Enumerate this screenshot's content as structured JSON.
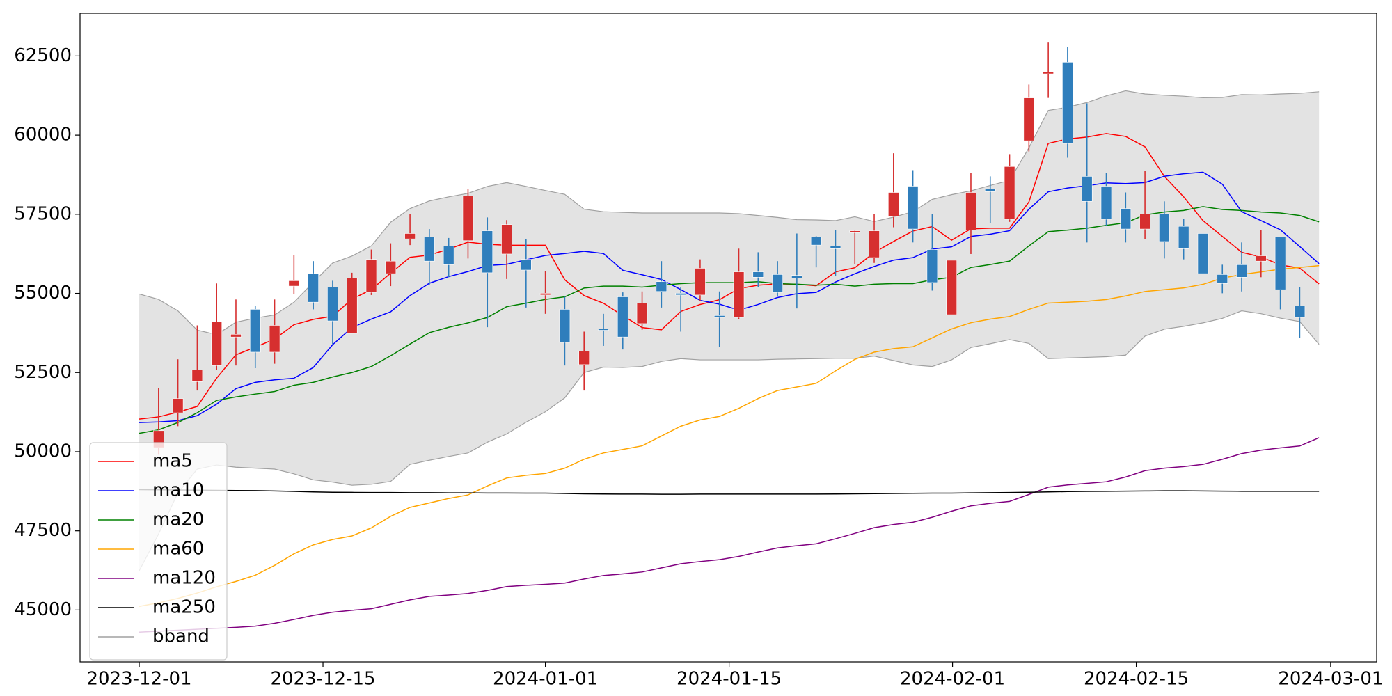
{
  "chart_data": {
    "type": "candlestick",
    "x": [
      0,
      1,
      2,
      3,
      4,
      5,
      6,
      7,
      8,
      9,
      10,
      11,
      12,
      13,
      14,
      15,
      16,
      17,
      18,
      19,
      20,
      21,
      22,
      23,
      24,
      25,
      26,
      27,
      28,
      29,
      30,
      31,
      32,
      33,
      34,
      35,
      36,
      37,
      38,
      39,
      40,
      41,
      42,
      43,
      44,
      45,
      46,
      47,
      48,
      49,
      50,
      51,
      52,
      53,
      54,
      55,
      56,
      57,
      58,
      59,
      60,
      61
    ],
    "xlim": [
      -3.06,
      63.98
    ],
    "xticks": [
      {
        "value": 0,
        "label": "2023-12-01"
      },
      {
        "value": 9.5,
        "label": "2023-12-15"
      },
      {
        "value": 21,
        "label": "2024-01-01"
      },
      {
        "value": 30.5,
        "label": "2024-01-15"
      },
      {
        "value": 42.05,
        "label": "2024-02-01"
      },
      {
        "value": 51.55,
        "label": "2024-02-15"
      },
      {
        "value": 61.6,
        "label": "2024-03-01"
      }
    ],
    "ylim": [
      43360,
      63850
    ],
    "yticks": [
      45000,
      47500,
      50000,
      52500,
      55000,
      57500,
      60000,
      62500
    ],
    "up_color": "#d62f2f",
    "down_color": "#2f7ebc",
    "open": [
      null,
      50129,
      51228,
      52214,
      52722,
      53623,
      54497,
      53144,
      55230,
      55624,
      55201,
      53736,
      55032,
      55624,
      56723,
      56779,
      56498,
      56667,
      56977,
      56244,
      56075,
      54948,
      54497,
      52750,
      53880,
      54891,
      54046,
      55371,
      55004,
      54948,
      54300,
      54243,
      55680,
      55596,
      55568,
      56779,
      56498,
      56920,
      56131,
      57428,
      58386,
      56385,
      54328,
      57005,
      58301,
      57343,
      59823,
      61936,
      62303,
      58696,
      58386,
      57681,
      57033,
      57512,
      57118,
      56892,
      55596,
      55906,
      56019,
      56779,
      54610,
      null
    ],
    "high": [
      null,
      52017,
      52919,
      53990,
      55314,
      54807,
      54610,
      54807,
      56216,
      56019,
      55399,
      55652,
      56385,
      56582,
      57512,
      57033,
      56751,
      58301,
      57399,
      57315,
      56723,
      55709,
      54891,
      53792,
      54356,
      55032,
      55061,
      56019,
      55201,
      56075,
      55061,
      56413,
      56300,
      56019,
      56892,
      56808,
      57005,
      57005,
      57512,
      59428,
      58893,
      57512,
      56047,
      58808,
      58696,
      59400,
      61598,
      62923,
      62782,
      61006,
      58808,
      58188,
      58865,
      57907,
      57343,
      56892,
      55906,
      56610,
      57005,
      56779,
      55201,
      null
    ],
    "low": [
      null,
      49904,
      50805,
      51932,
      52581,
      52722,
      52637,
      52778,
      54976,
      54497,
      53398,
      53736,
      54948,
      55230,
      56526,
      55258,
      55511,
      56103,
      53933,
      55455,
      54553,
      54356,
      52722,
      51932,
      53342,
      53229,
      53849,
      54553,
      53792,
      54751,
      53313,
      54187,
      55201,
      54920,
      54525,
      55821,
      55539,
      55934,
      55962,
      57089,
      56610,
      55089,
      54328,
      56244,
      57230,
      57259,
      59485,
      61176,
      59288,
      56610,
      57146,
      56610,
      56723,
      56103,
      56075,
      55624,
      55004,
      55061,
      55511,
      54497,
      53595,
      null
    ],
    "close": [
      null,
      50664,
      51679,
      52581,
      54102,
      53708,
      53144,
      53990,
      55399,
      54722,
      54131,
      55483,
      56075,
      56019,
      56892,
      56019,
      55906,
      58076,
      55652,
      57174,
      55737,
      55004,
      53454,
      53173,
      53850,
      53623,
      54694,
      55061,
      54948,
      55793,
      54243,
      55680,
      55511,
      55032,
      55483,
      56526,
      56413,
      56977,
      56977,
      58188,
      57033,
      55342,
      56047,
      58188,
      58217,
      59006,
      61176,
      61993,
      59738,
      57907,
      57343,
      57033,
      57512,
      56639,
      56413,
      55624,
      55314,
      55511,
      56187,
      55117,
      54243,
      null
    ],
    "series": [
      {
        "name": "ma5",
        "color": "#ff0000",
        "values": [
          51030,
          51100,
          51250,
          51430,
          52320,
          53060,
          53300,
          53560,
          54010,
          54180,
          54280,
          54820,
          55120,
          55640,
          56140,
          56210,
          56400,
          56620,
          56550,
          56520,
          56520,
          56520,
          55430,
          54930,
          54690,
          54300,
          53920,
          53850,
          54430,
          54650,
          54800,
          55150,
          55260,
          55300,
          55290,
          55240,
          55680,
          55810,
          56290,
          56640,
          56970,
          57110,
          56680,
          57040,
          57060,
          57060,
          57890,
          59740,
          59880,
          59940,
          60050,
          59960,
          59630,
          58700,
          58050,
          57300,
          56800,
          56300,
          56150,
          55900,
          55800,
          55300
        ]
      },
      {
        "name": "ma10",
        "color": "#0000ff",
        "values": [
          50920,
          50940,
          50980,
          51140,
          51500,
          51990,
          52190,
          52270,
          52320,
          52660,
          53380,
          53920,
          54190,
          54420,
          54930,
          55320,
          55530,
          55690,
          55880,
          55920,
          56060,
          56200,
          56260,
          56330,
          56260,
          55730,
          55590,
          55440,
          55120,
          54780,
          54660,
          54470,
          54650,
          54870,
          54990,
          55030,
          55360,
          55620,
          55850,
          56050,
          56130,
          56400,
          56470,
          56800,
          56870,
          56980,
          57660,
          58210,
          58330,
          58400,
          58490,
          58470,
          58500,
          58700,
          58780,
          58830,
          58450,
          57580,
          57300,
          57010,
          56480,
          55940
        ]
      },
      {
        "name": "ma20",
        "color": "#008000",
        "values": [
          50580,
          50690,
          50920,
          51230,
          51620,
          51730,
          51820,
          51900,
          52100,
          52190,
          52360,
          52500,
          52690,
          53030,
          53400,
          53760,
          53930,
          54070,
          54240,
          54580,
          54690,
          54810,
          54890,
          55170,
          55230,
          55230,
          55200,
          55260,
          55310,
          55340,
          55340,
          55340,
          55370,
          55310,
          55290,
          55260,
          55290,
          55230,
          55290,
          55310,
          55310,
          55430,
          55510,
          55820,
          55910,
          56020,
          56500,
          56950,
          57000,
          57060,
          57150,
          57230,
          57480,
          57570,
          57620,
          57740,
          57650,
          57620,
          57570,
          57540,
          57460,
          57260
        ]
      },
      {
        "name": "ma60",
        "color": "#ffa500",
        "values": [
          45113,
          45225,
          45366,
          45535,
          45733,
          45902,
          46099,
          46409,
          46775,
          47057,
          47226,
          47339,
          47592,
          47959,
          48241,
          48381,
          48522,
          48635,
          48917,
          49171,
          49255,
          49311,
          49480,
          49762,
          49960,
          50072,
          50185,
          50495,
          50805,
          51002,
          51115,
          51369,
          51679,
          51932,
          52045,
          52158,
          52552,
          52918,
          53144,
          53257,
          53313,
          53595,
          53877,
          54074,
          54187,
          54271,
          54497,
          54694,
          54722,
          54750,
          54807,
          54919,
          55060,
          55116,
          55173,
          55286,
          55483,
          55596,
          55680,
          55765,
          55821,
          55877
        ]
      },
      {
        "name": "ma120",
        "color": "#800080",
        "values": [
          44300,
          44330,
          44360,
          44390,
          44420,
          44450,
          44490,
          44580,
          44700,
          44830,
          44930,
          44990,
          45040,
          45180,
          45320,
          45430,
          45470,
          45520,
          45620,
          45740,
          45780,
          45810,
          45850,
          45980,
          46090,
          46140,
          46200,
          46330,
          46460,
          46530,
          46590,
          46690,
          46830,
          46960,
          47030,
          47090,
          47250,
          47420,
          47600,
          47700,
          47770,
          47930,
          48120,
          48290,
          48370,
          48430,
          48650,
          48880,
          48950,
          49000,
          49050,
          49200,
          49400,
          49480,
          49530,
          49600,
          49760,
          49940,
          50050,
          50120,
          50180,
          50440
        ]
      },
      {
        "name": "ma250",
        "color": "#000000",
        "values": [
          48800,
          48795,
          48790,
          48785,
          48780,
          48775,
          48770,
          48760,
          48745,
          48730,
          48720,
          48715,
          48710,
          48710,
          48705,
          48705,
          48700,
          48700,
          48695,
          48695,
          48690,
          48690,
          48680,
          48670,
          48665,
          48660,
          48660,
          48655,
          48655,
          48660,
          48660,
          48660,
          48660,
          48660,
          48660,
          48660,
          48665,
          48670,
          48675,
          48680,
          48685,
          48690,
          48690,
          48700,
          48705,
          48710,
          48720,
          48730,
          48740,
          48745,
          48750,
          48755,
          48760,
          48765,
          48765,
          48760,
          48755,
          48750,
          48750,
          48750,
          48750,
          48750
        ]
      }
    ],
    "bband": {
      "name": "bband",
      "color": "#a0a0a0",
      "fill_color": "#e3e3e3",
      "upper": [
        54980,
        54810,
        54450,
        53840,
        53700,
        54090,
        54220,
        54320,
        54720,
        55350,
        55960,
        56180,
        56500,
        57250,
        57680,
        57920,
        58050,
        58160,
        58380,
        58500,
        58380,
        58250,
        58130,
        57660,
        57580,
        57560,
        57540,
        57540,
        57540,
        57540,
        57540,
        57520,
        57460,
        57400,
        57330,
        57320,
        57300,
        57420,
        57270,
        57410,
        57580,
        57970,
        58120,
        58240,
        58410,
        58570,
        59600,
        60780,
        60880,
        61030,
        61240,
        61400,
        61300,
        61260,
        61230,
        61180,
        61190,
        61280,
        61270,
        61300,
        61320,
        61370
      ],
      "lower": [
        46240,
        47400,
        48700,
        49450,
        49580,
        49510,
        49480,
        49450,
        49300,
        49110,
        49040,
        48940,
        48970,
        49060,
        49600,
        49730,
        49850,
        49960,
        50300,
        50560,
        50930,
        51260,
        51700,
        52500,
        52670,
        52660,
        52690,
        52850,
        52940,
        52900,
        52900,
        52900,
        52900,
        52920,
        52930,
        52940,
        52950,
        52950,
        53020,
        52880,
        52740,
        52690,
        52900,
        53290,
        53410,
        53540,
        53420,
        52940,
        52960,
        52980,
        53000,
        53050,
        53650,
        53870,
        53960,
        54070,
        54210,
        54450,
        54360,
        54220,
        54110,
        53390
      ]
    }
  }
}
